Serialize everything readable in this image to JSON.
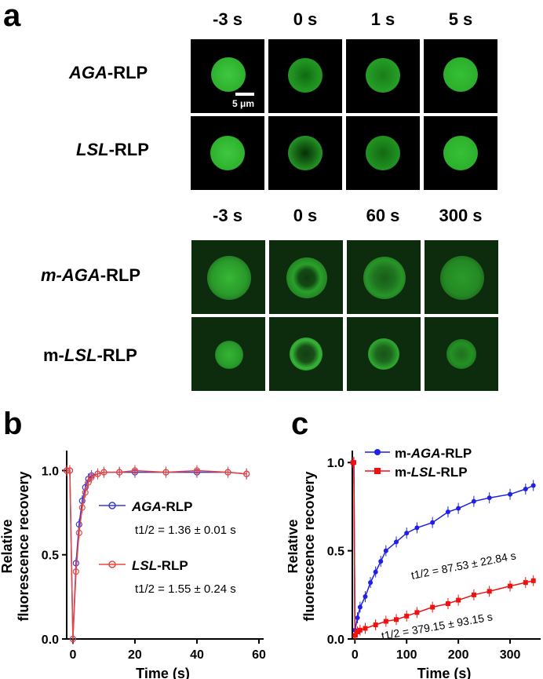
{
  "panel_a": {
    "letter": "a",
    "top_times": [
      "-3 s",
      "0 s",
      "1 s",
      "5 s"
    ],
    "bottom_times": [
      "-3 s",
      "0 s",
      "60 s",
      "300 s"
    ],
    "rows": {
      "aga": {
        "prefix": "",
        "italic": "AGA",
        "suffix": "-RLP"
      },
      "lsl": {
        "prefix": "",
        "italic": "LSL",
        "suffix": "-RLP"
      },
      "maga": {
        "prefix": "",
        "italic": "m-AGA",
        "suffix": "-RLP"
      },
      "mlsl": {
        "prefix": "m-",
        "italic": "LSL",
        "suffix": "-RLP"
      }
    },
    "scale_bar": "5 μm"
  },
  "panel_b": {
    "letter": "b",
    "legend": [
      {
        "italic": "AGA",
        "suffix": "-RLP",
        "t_half": "t1/2 = 1.36 ± 0.01 s",
        "color": "#3a3acf"
      },
      {
        "italic": "LSL",
        "suffix": "-RLP",
        "t_half": "t1/2 = 1.55 ± 0.24 s",
        "color": "#e8473f"
      }
    ]
  },
  "panel_c": {
    "letter": "c",
    "legend": [
      {
        "prefix": "m-",
        "italic": "AGA",
        "suffix": "-RLP",
        "color": "#1f1fe6"
      },
      {
        "prefix": "m-",
        "italic": "LSL",
        "suffix": "-RLP",
        "color": "#f01010"
      }
    ],
    "annotations": [
      "t1/2 = 87.53 ± 22.84 s",
      "t1/2 = 379.15 ± 93.15 s"
    ]
  },
  "chart_data": [
    {
      "type": "line",
      "panel": "b",
      "xlabel": "Time (s)",
      "ylabel": "Relative fluorescence recovery",
      "xlim": [
        -2,
        60
      ],
      "ylim": [
        0,
        1.1
      ],
      "xticks": [
        0,
        20,
        40,
        60
      ],
      "yticks": [
        0.0,
        0.5,
        1.0
      ],
      "series": [
        {
          "name": "AGA-RLP",
          "x": [
            -2,
            -1,
            0,
            1,
            2,
            3,
            4,
            5,
            6,
            8,
            10,
            15,
            20,
            30,
            40,
            50,
            56
          ],
          "values": [
            1.0,
            1.0,
            0.0,
            0.45,
            0.68,
            0.82,
            0.9,
            0.95,
            0.97,
            0.98,
            0.99,
            0.99,
            0.99,
            0.99,
            0.99,
            0.99,
            0.98
          ],
          "color": "#3a3acf"
        },
        {
          "name": "LSL-RLP",
          "x": [
            -2,
            -1,
            0,
            1,
            2,
            3,
            4,
            5,
            6,
            8,
            10,
            15,
            20,
            30,
            40,
            50,
            56
          ],
          "values": [
            1.0,
            1.0,
            0.0,
            0.4,
            0.63,
            0.78,
            0.87,
            0.93,
            0.96,
            0.98,
            0.99,
            0.99,
            1.0,
            0.99,
            1.0,
            0.99,
            0.98
          ],
          "color": "#e8473f"
        }
      ]
    },
    {
      "type": "line",
      "panel": "c",
      "xlabel": "Time (s)",
      "ylabel": "Relative fluorescence recovery",
      "xlim": [
        -5,
        350
      ],
      "ylim": [
        0,
        1.05
      ],
      "xticks": [
        0,
        100,
        200,
        300
      ],
      "yticks": [
        0.0,
        0.5,
        1.0
      ],
      "series": [
        {
          "name": "m-AGA-RLP",
          "x": [
            -4,
            -2,
            0,
            5,
            10,
            20,
            30,
            40,
            50,
            60,
            80,
            100,
            120,
            150,
            180,
            200,
            230,
            260,
            300,
            330,
            345
          ],
          "values": [
            1.0,
            1.0,
            0.05,
            0.12,
            0.18,
            0.24,
            0.32,
            0.38,
            0.44,
            0.5,
            0.55,
            0.6,
            0.63,
            0.66,
            0.72,
            0.74,
            0.78,
            0.8,
            0.82,
            0.85,
            0.87
          ],
          "color": "#1f1fe6"
        },
        {
          "name": "m-LSL-RLP",
          "x": [
            -4,
            -2,
            0,
            5,
            10,
            20,
            40,
            60,
            80,
            100,
            120,
            150,
            180,
            200,
            230,
            260,
            300,
            330,
            345
          ],
          "values": [
            1.0,
            1.0,
            0.02,
            0.04,
            0.05,
            0.06,
            0.08,
            0.1,
            0.11,
            0.13,
            0.15,
            0.18,
            0.2,
            0.22,
            0.25,
            0.27,
            0.3,
            0.32,
            0.33
          ],
          "color": "#f01010"
        }
      ]
    }
  ]
}
